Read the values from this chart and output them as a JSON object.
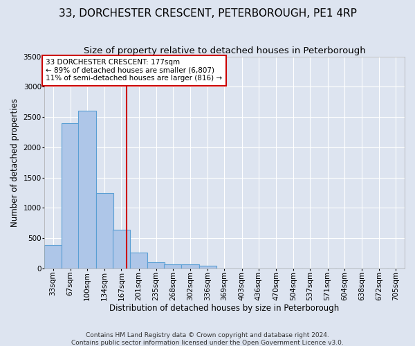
{
  "title": "33, DORCHESTER CRESCENT, PETERBOROUGH, PE1 4RP",
  "subtitle": "Size of property relative to detached houses in Peterborough",
  "xlabel": "Distribution of detached houses by size in Peterborough",
  "ylabel": "Number of detached properties",
  "footer1": "Contains HM Land Registry data © Crown copyright and database right 2024.",
  "footer2": "Contains public sector information licensed under the Open Government Licence v3.0.",
  "categories": [
    "33sqm",
    "67sqm",
    "100sqm",
    "134sqm",
    "167sqm",
    "201sqm",
    "235sqm",
    "268sqm",
    "302sqm",
    "336sqm",
    "369sqm",
    "403sqm",
    "436sqm",
    "470sqm",
    "504sqm",
    "537sqm",
    "571sqm",
    "604sqm",
    "638sqm",
    "672sqm",
    "705sqm"
  ],
  "values": [
    390,
    2400,
    2600,
    1240,
    640,
    255,
    100,
    65,
    60,
    45,
    0,
    0,
    0,
    0,
    0,
    0,
    0,
    0,
    0,
    0,
    0
  ],
  "bar_color": "#aec6e8",
  "bar_edge_color": "#5a9fd4",
  "vline_color": "#cc0000",
  "annotation_text_line1": "33 DORCHESTER CRESCENT: 177sqm",
  "annotation_text_line2": "← 89% of detached houses are smaller (6,807)",
  "annotation_text_line3": "11% of semi-detached houses are larger (816) →",
  "annotation_box_facecolor": "#ffffff",
  "annotation_box_edgecolor": "#cc0000",
  "ylim": [
    0,
    3500
  ],
  "yticks": [
    0,
    500,
    1000,
    1500,
    2000,
    2500,
    3000,
    3500
  ],
  "background_color": "#dde4f0",
  "grid_color": "#ffffff",
  "title_fontsize": 11,
  "subtitle_fontsize": 9.5,
  "axis_label_fontsize": 8.5,
  "tick_fontsize": 7.5,
  "annotation_fontsize": 7.5,
  "footer_fontsize": 6.5
}
